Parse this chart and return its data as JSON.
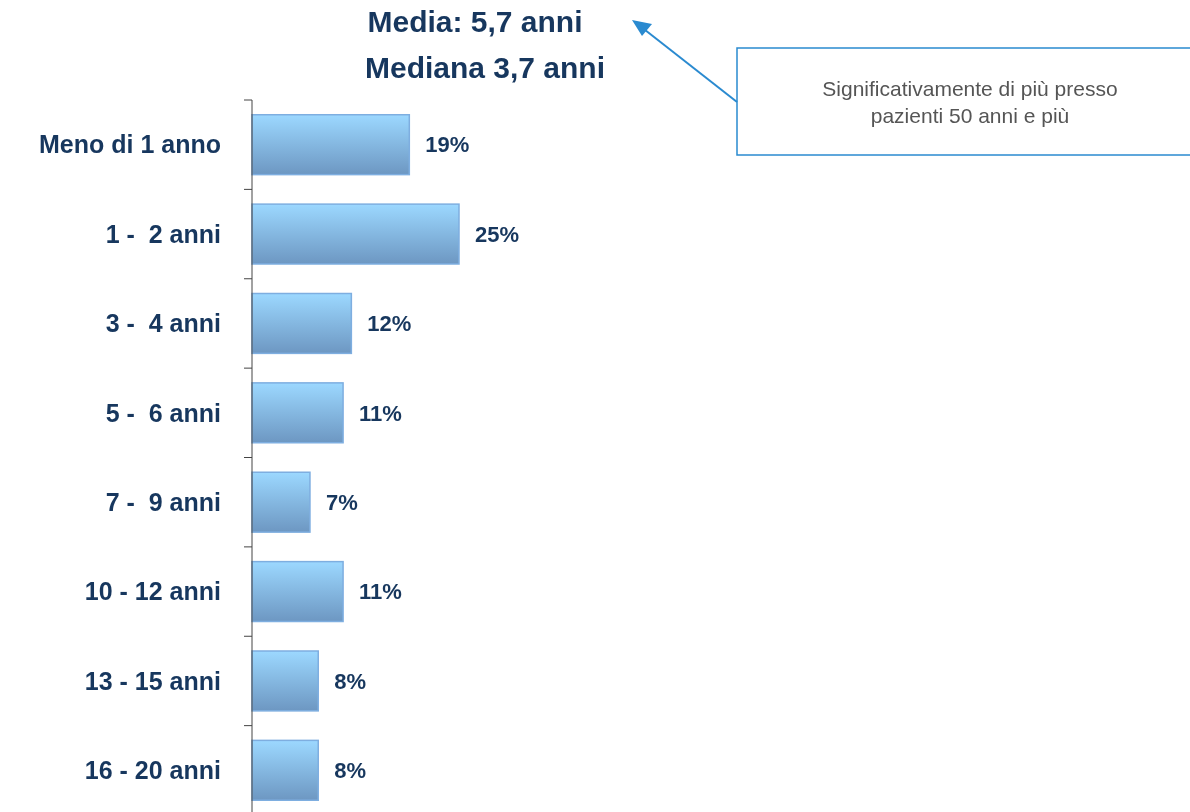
{
  "chart_data": {
    "type": "bar",
    "orientation": "horizontal",
    "title": "Media: 5,7 anni",
    "subtitle": "Mediana 3,7 anni",
    "categories": [
      "Meno di 1 anno",
      "1 -  2 anni",
      "3 -  4 anni",
      "5 -  6 anni",
      "7 -  9 anni",
      "10 - 12 anni",
      "13 - 15 anni",
      "16 - 20 anni"
    ],
    "values": [
      19,
      25,
      12,
      11,
      7,
      11,
      8,
      8
    ],
    "value_labels": [
      "19%",
      "25%",
      "12%",
      "11%",
      "7%",
      "11%",
      "8%",
      "8%"
    ],
    "color": "#7eaee0",
    "annotations": [
      "Significativamente di più presso pazienti 50 anni e più"
    ]
  }
}
